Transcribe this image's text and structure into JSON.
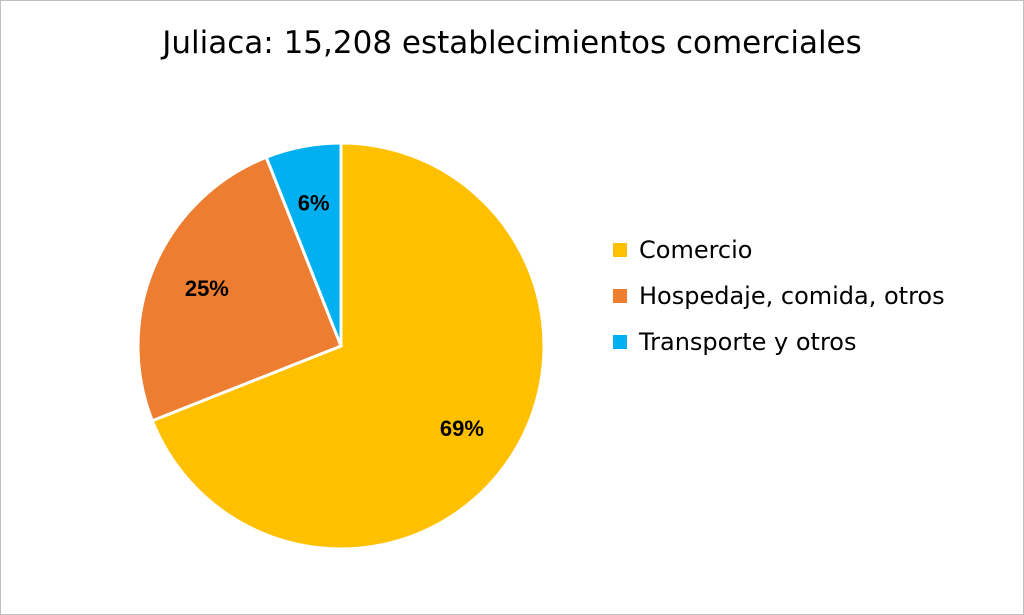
{
  "chart_data": {
    "type": "pie",
    "title": "Juliaca: 15,208 establecimientos comerciales",
    "legend_position": "right",
    "slices": [
      {
        "label": "Comercio",
        "value": 69,
        "data_label": "69%",
        "color": "#FFC000"
      },
      {
        "label": "Hospedaje, comida, otros",
        "value": 25,
        "data_label": "25%",
        "color": "#ED7D31"
      },
      {
        "label": "Transporte y otros",
        "value": 6,
        "data_label": "6%",
        "color": "#00B0F0"
      }
    ]
  }
}
